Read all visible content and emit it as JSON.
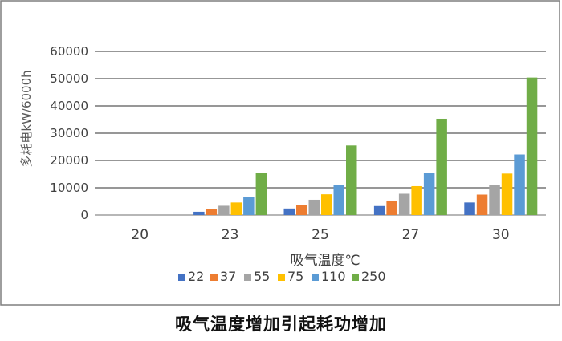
{
  "caption": "吸气温度增加引起耗功增加",
  "chart_data": {
    "type": "bar",
    "title": "",
    "xlabel": "吸气温度℃",
    "ylabel": "多耗电kW/6000h",
    "ylim": [
      0,
      60000
    ],
    "yticks": [
      0,
      10000,
      20000,
      30000,
      40000,
      50000,
      60000
    ],
    "ytick_labels": [
      "0",
      "10000",
      "20000",
      "30000",
      "40000",
      "50000",
      "60000"
    ],
    "grid": true,
    "legend": "bottom",
    "categories": [
      "20",
      "23",
      "25",
      "27",
      "30"
    ],
    "series": [
      {
        "name": "22",
        "color": "#4472C4",
        "values": [
          0,
          1200,
          2400,
          3300,
          4600
        ]
      },
      {
        "name": "37",
        "color": "#ED7D31",
        "values": [
          0,
          2300,
          3800,
          5300,
          7500
        ]
      },
      {
        "name": "55",
        "color": "#A5A5A5",
        "values": [
          0,
          3400,
          5600,
          7800,
          11100
        ]
      },
      {
        "name": "75",
        "color": "#FFC000",
        "values": [
          0,
          4600,
          7600,
          10600,
          15200
        ]
      },
      {
        "name": "110",
        "color": "#5B9BD5",
        "values": [
          0,
          6700,
          11000,
          15300,
          22200
        ]
      },
      {
        "name": "250",
        "color": "#70AD47",
        "values": [
          0,
          15300,
          25500,
          35300,
          50400
        ]
      }
    ]
  }
}
